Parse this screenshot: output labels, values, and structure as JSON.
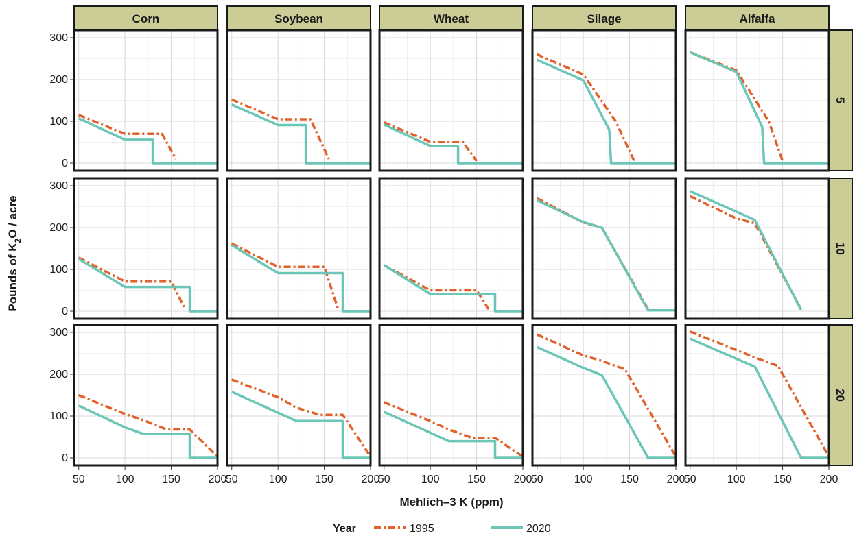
{
  "colors": {
    "s1995": "#e0622a",
    "s2020": "#6cc6b8",
    "strip": "#cccd96"
  },
  "chart_data": {
    "type": "line",
    "xlabel": "Mehlich–3 K (ppm)",
    "ylabel": {
      "prefix": "Pounds of K",
      "sub": "2",
      "suffix": "O / acre"
    },
    "xlim": [
      45,
      200
    ],
    "ylim": [
      -18,
      318
    ],
    "xticks": [
      "50",
      "100",
      "150",
      "200"
    ],
    "yticks": [
      "0",
      "100",
      "200",
      "300"
    ],
    "cols": [
      "Corn",
      "Soybean",
      "Wheat",
      "Silage",
      "Alfalfa"
    ],
    "rows": [
      "5",
      "10",
      "20"
    ],
    "legend": {
      "title": "Year",
      "items": [
        "1995",
        "2020"
      ]
    },
    "series": [
      {
        "row": "5",
        "col": "Corn",
        "name": "1995",
        "points": [
          [
            50,
            115
          ],
          [
            100,
            70
          ],
          [
            120,
            70
          ],
          [
            140,
            70
          ],
          [
            155,
            10
          ]
        ]
      },
      {
        "row": "5",
        "col": "Corn",
        "name": "2020",
        "points": [
          [
            50,
            107
          ],
          [
            100,
            56
          ],
          [
            130,
            56
          ],
          [
            130,
            0
          ],
          [
            200,
            0
          ]
        ]
      },
      {
        "row": "5",
        "col": "Soybean",
        "name": "1995",
        "points": [
          [
            50,
            152
          ],
          [
            100,
            105
          ],
          [
            120,
            105
          ],
          [
            135,
            105
          ],
          [
            155,
            10
          ]
        ]
      },
      {
        "row": "5",
        "col": "Soybean",
        "name": "2020",
        "points": [
          [
            50,
            140
          ],
          [
            100,
            91
          ],
          [
            130,
            91
          ],
          [
            130,
            0
          ],
          [
            200,
            0
          ]
        ]
      },
      {
        "row": "5",
        "col": "Wheat",
        "name": "1995",
        "points": [
          [
            50,
            97
          ],
          [
            100,
            51
          ],
          [
            135,
            51
          ],
          [
            150,
            5
          ]
        ]
      },
      {
        "row": "5",
        "col": "Wheat",
        "name": "2020",
        "points": [
          [
            50,
            92
          ],
          [
            100,
            41
          ],
          [
            130,
            41
          ],
          [
            130,
            0
          ],
          [
            200,
            0
          ]
        ]
      },
      {
        "row": "5",
        "col": "Silage",
        "name": "1995",
        "points": [
          [
            50,
            260
          ],
          [
            100,
            212
          ],
          [
            135,
            100
          ],
          [
            155,
            5
          ]
        ]
      },
      {
        "row": "5",
        "col": "Silage",
        "name": "2020",
        "points": [
          [
            50,
            247
          ],
          [
            100,
            198
          ],
          [
            128,
            80
          ],
          [
            130,
            0
          ],
          [
            200,
            0
          ]
        ]
      },
      {
        "row": "5",
        "col": "Alfalfa",
        "name": "1995",
        "points": [
          [
            50,
            265
          ],
          [
            100,
            222
          ],
          [
            135,
            100
          ],
          [
            150,
            5
          ]
        ]
      },
      {
        "row": "5",
        "col": "Alfalfa",
        "name": "2020",
        "points": [
          [
            50,
            265
          ],
          [
            100,
            218
          ],
          [
            128,
            86
          ],
          [
            130,
            0
          ],
          [
            200,
            0
          ]
        ]
      },
      {
        "row": "10",
        "col": "Corn",
        "name": "1995",
        "points": [
          [
            50,
            128
          ],
          [
            100,
            71
          ],
          [
            140,
            71
          ],
          [
            150,
            71
          ],
          [
            165,
            5
          ]
        ]
      },
      {
        "row": "10",
        "col": "Corn",
        "name": "2020",
        "points": [
          [
            50,
            125
          ],
          [
            100,
            58
          ],
          [
            170,
            58
          ],
          [
            170,
            0
          ],
          [
            200,
            0
          ]
        ]
      },
      {
        "row": "10",
        "col": "Soybean",
        "name": "1995",
        "points": [
          [
            50,
            162
          ],
          [
            100,
            106
          ],
          [
            140,
            106
          ],
          [
            150,
            106
          ],
          [
            165,
            5
          ]
        ]
      },
      {
        "row": "10",
        "col": "Soybean",
        "name": "2020",
        "points": [
          [
            50,
            158
          ],
          [
            100,
            91
          ],
          [
            170,
            91
          ],
          [
            170,
            0
          ],
          [
            200,
            0
          ]
        ]
      },
      {
        "row": "10",
        "col": "Wheat",
        "name": "1995",
        "points": [
          [
            50,
            110
          ],
          [
            100,
            50
          ],
          [
            140,
            50
          ],
          [
            150,
            50
          ],
          [
            163,
            5
          ]
        ]
      },
      {
        "row": "10",
        "col": "Wheat",
        "name": "2020",
        "points": [
          [
            50,
            110
          ],
          [
            100,
            41
          ],
          [
            170,
            41
          ],
          [
            170,
            0
          ],
          [
            200,
            0
          ]
        ]
      },
      {
        "row": "10",
        "col": "Silage",
        "name": "1995",
        "points": [
          [
            50,
            270
          ],
          [
            100,
            212
          ],
          [
            120,
            200
          ],
          [
            170,
            5
          ]
        ]
      },
      {
        "row": "10",
        "col": "Silage",
        "name": "2020",
        "points": [
          [
            50,
            265
          ],
          [
            100,
            213
          ],
          [
            120,
            200
          ],
          [
            170,
            2
          ],
          [
            200,
            2
          ]
        ]
      },
      {
        "row": "10",
        "col": "Alfalfa",
        "name": "1995",
        "points": [
          [
            50,
            275
          ],
          [
            100,
            222
          ],
          [
            120,
            210
          ],
          [
            170,
            5
          ]
        ]
      },
      {
        "row": "10",
        "col": "Alfalfa",
        "name": "2020",
        "points": [
          [
            50,
            287
          ],
          [
            100,
            238
          ],
          [
            120,
            218
          ],
          [
            170,
            3
          ]
        ]
      },
      {
        "row": "20",
        "col": "Corn",
        "name": "1995",
        "points": [
          [
            50,
            150
          ],
          [
            100,
            105
          ],
          [
            120,
            90
          ],
          [
            145,
            68
          ],
          [
            170,
            68
          ],
          [
            200,
            3
          ]
        ]
      },
      {
        "row": "20",
        "col": "Corn",
        "name": "2020",
        "points": [
          [
            50,
            125
          ],
          [
            100,
            73
          ],
          [
            120,
            57
          ],
          [
            170,
            57
          ],
          [
            170,
            0
          ],
          [
            200,
            0
          ]
        ]
      },
      {
        "row": "20",
        "col": "Soybean",
        "name": "1995",
        "points": [
          [
            50,
            187
          ],
          [
            100,
            145
          ],
          [
            120,
            120
          ],
          [
            145,
            103
          ],
          [
            170,
            103
          ],
          [
            200,
            3
          ]
        ]
      },
      {
        "row": "20",
        "col": "Soybean",
        "name": "2020",
        "points": [
          [
            50,
            158
          ],
          [
            100,
            108
          ],
          [
            120,
            88
          ],
          [
            170,
            88
          ],
          [
            170,
            0
          ],
          [
            200,
            0
          ]
        ]
      },
      {
        "row": "20",
        "col": "Wheat",
        "name": "1995",
        "points": [
          [
            50,
            133
          ],
          [
            100,
            88
          ],
          [
            120,
            68
          ],
          [
            145,
            48
          ],
          [
            170,
            48
          ],
          [
            200,
            3
          ]
        ]
      },
      {
        "row": "20",
        "col": "Wheat",
        "name": "2020",
        "points": [
          [
            50,
            110
          ],
          [
            100,
            60
          ],
          [
            120,
            40
          ],
          [
            170,
            40
          ],
          [
            170,
            0
          ],
          [
            200,
            0
          ]
        ]
      },
      {
        "row": "20",
        "col": "Silage",
        "name": "1995",
        "points": [
          [
            50,
            295
          ],
          [
            100,
            245
          ],
          [
            120,
            232
          ],
          [
            145,
            212
          ],
          [
            200,
            3
          ]
        ]
      },
      {
        "row": "20",
        "col": "Silage",
        "name": "2020",
        "points": [
          [
            50,
            265
          ],
          [
            100,
            215
          ],
          [
            120,
            198
          ],
          [
            170,
            0
          ],
          [
            200,
            0
          ]
        ]
      },
      {
        "row": "20",
        "col": "Alfalfa",
        "name": "1995",
        "points": [
          [
            50,
            302
          ],
          [
            100,
            258
          ],
          [
            120,
            240
          ],
          [
            145,
            220
          ],
          [
            200,
            3
          ]
        ]
      },
      {
        "row": "20",
        "col": "Alfalfa",
        "name": "2020",
        "points": [
          [
            50,
            285
          ],
          [
            100,
            237
          ],
          [
            120,
            218
          ],
          [
            170,
            0
          ],
          [
            200,
            0
          ]
        ]
      }
    ]
  }
}
